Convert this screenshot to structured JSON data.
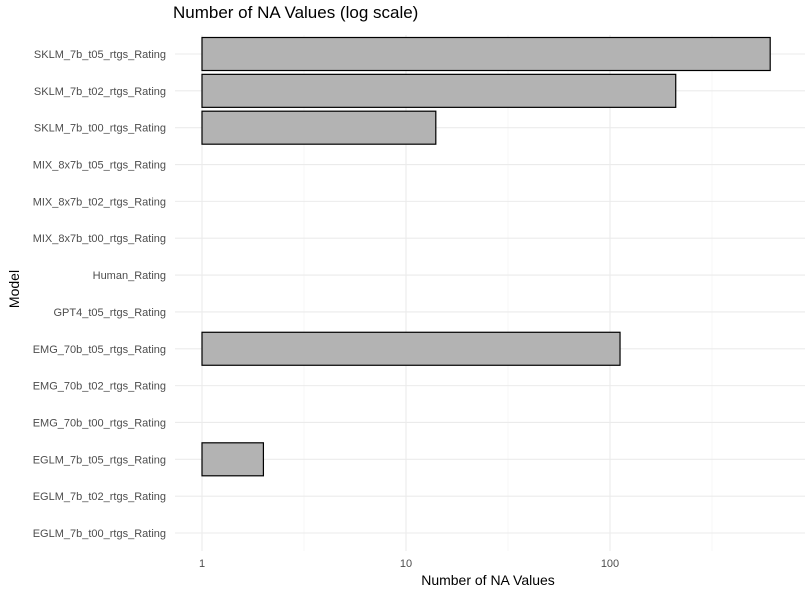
{
  "chart_data": {
    "type": "bar",
    "orientation": "horizontal",
    "title": "Number of NA Values (log scale)",
    "xlabel": "Number of NA Values",
    "ylabel": "Model",
    "x_scale": "log10",
    "xlim": [
      0.85,
      1000
    ],
    "x_ticks": [
      1,
      10,
      100
    ],
    "x_tick_labels": [
      "1",
      "10",
      "100"
    ],
    "grid": true,
    "legend": "none",
    "bar_fill": "#b3b3b3",
    "bar_stroke": "#000000",
    "categories": [
      "SKLM_7b_t05_rtgs_Rating",
      "SKLM_7b_t02_rtgs_Rating",
      "SKLM_7b_t00_rtgs_Rating",
      "MIX_8x7b_t05_rtgs_Rating",
      "MIX_8x7b_t02_rtgs_Rating",
      "MIX_8x7b_t00_rtgs_Rating",
      "Human_Rating",
      "GPT4_t05_rtgs_Rating",
      "EMG_70b_t05_rtgs_Rating",
      "EMG_70b_t02_rtgs_Rating",
      "EMG_70b_t00_rtgs_Rating",
      "EGLM_7b_t05_rtgs_Rating",
      "EGLM_7b_t02_rtgs_Rating",
      "EGLM_7b_t00_rtgs_Rating"
    ],
    "values": [
      610,
      210,
      14,
      null,
      null,
      null,
      null,
      null,
      112,
      null,
      null,
      2,
      null,
      null
    ]
  }
}
